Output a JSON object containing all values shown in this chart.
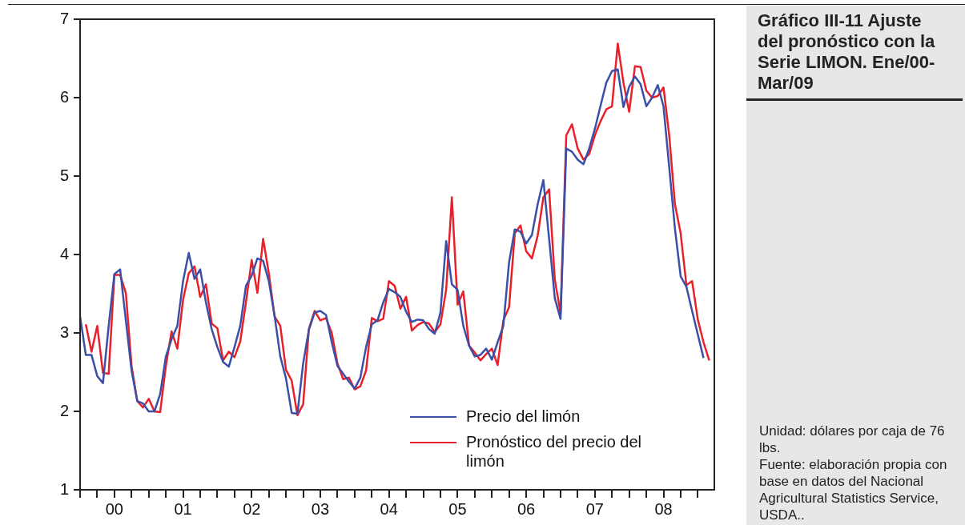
{
  "chart_data": {
    "type": "line",
    "title": "Gráfico III-11 Ajuste del pronóstico con la Serie LIMON. Ene/00-Mar/09",
    "annotations": [
      "Unidad: dólares por caja de 76 lbs.",
      "Fuente: elaboración propia con base en datos del Nacional Agricultural Statistics Service, USDA.."
    ],
    "x": [
      "2000-01",
      "2000-02",
      "2000-03",
      "2000-04",
      "2000-05",
      "2000-06",
      "2000-07",
      "2000-08",
      "2000-09",
      "2000-10",
      "2000-11",
      "2000-12",
      "2001-01",
      "2001-02",
      "2001-03",
      "2001-04",
      "2001-05",
      "2001-06",
      "2001-07",
      "2001-08",
      "2001-09",
      "2001-10",
      "2001-11",
      "2001-12",
      "2002-01",
      "2002-02",
      "2002-03",
      "2002-04",
      "2002-05",
      "2002-06",
      "2002-07",
      "2002-08",
      "2002-09",
      "2002-10",
      "2002-11",
      "2002-12",
      "2003-01",
      "2003-02",
      "2003-03",
      "2003-04",
      "2003-05",
      "2003-06",
      "2003-07",
      "2003-08",
      "2003-09",
      "2003-10",
      "2003-11",
      "2003-12",
      "2004-01",
      "2004-02",
      "2004-03",
      "2004-04",
      "2004-05",
      "2004-06",
      "2004-07",
      "2004-08",
      "2004-09",
      "2004-10",
      "2004-11",
      "2004-12",
      "2005-01",
      "2005-02",
      "2005-03",
      "2005-04",
      "2005-05",
      "2005-06",
      "2005-07",
      "2005-08",
      "2005-09",
      "2005-10",
      "2005-11",
      "2005-12",
      "2006-01",
      "2006-02",
      "2006-03",
      "2006-04",
      "2006-05",
      "2006-06",
      "2006-07",
      "2006-08",
      "2006-09",
      "2006-10",
      "2006-11",
      "2006-12",
      "2007-01",
      "2007-02",
      "2007-03",
      "2007-04",
      "2007-05",
      "2007-06",
      "2007-07",
      "2007-08",
      "2007-09",
      "2007-10",
      "2007-11",
      "2007-12",
      "2008-01",
      "2008-02",
      "2008-03",
      "2008-04",
      "2008-05",
      "2008-06",
      "2008-07",
      "2008-08",
      "2008-09",
      "2008-10",
      "2008-11",
      "2008-12",
      "2009-01",
      "2009-02",
      "2009-03"
    ],
    "series": [
      {
        "name": "Precio del limón",
        "color": "#3a50a8",
        "values": [
          3.21,
          2.72,
          2.72,
          2.45,
          2.36,
          3.09,
          3.75,
          3.81,
          3.16,
          2.52,
          2.13,
          2.1,
          2.0,
          2.0,
          2.22,
          2.7,
          2.92,
          3.09,
          3.66,
          4.02,
          3.69,
          3.81,
          3.39,
          3.05,
          2.82,
          2.63,
          2.57,
          2.82,
          3.09,
          3.6,
          3.73,
          3.95,
          3.92,
          3.66,
          3.22,
          2.7,
          2.42,
          1.98,
          1.97,
          2.61,
          3.04,
          3.26,
          3.28,
          3.23,
          2.88,
          2.58,
          2.48,
          2.38,
          2.29,
          2.43,
          2.82,
          3.11,
          3.16,
          3.39,
          3.56,
          3.52,
          3.46,
          3.27,
          3.14,
          3.17,
          3.16,
          3.05,
          2.99,
          3.26,
          4.17,
          3.62,
          3.55,
          3.09,
          2.84,
          2.7,
          2.72,
          2.8,
          2.66,
          2.88,
          3.09,
          3.9,
          4.32,
          4.29,
          4.14,
          4.25,
          4.64,
          4.95,
          4.2,
          3.44,
          3.18,
          5.35,
          5.31,
          5.21,
          5.15,
          5.35,
          5.6,
          5.9,
          6.19,
          6.34,
          6.36,
          5.88,
          6.14,
          6.27,
          6.17,
          5.89,
          6.0,
          6.16,
          5.89,
          5.11,
          4.33,
          3.72,
          3.59,
          3.28,
          2.98,
          2.68,
          null
        ]
      },
      {
        "name": "Pronóstico del precio del limón",
        "color": "#e8202a",
        "values": [
          null,
          3.11,
          2.76,
          3.09,
          2.49,
          2.48,
          3.74,
          3.74,
          3.51,
          2.58,
          2.13,
          2.05,
          2.16,
          2.0,
          1.99,
          2.58,
          3.02,
          2.8,
          3.42,
          3.76,
          3.85,
          3.46,
          3.62,
          3.12,
          3.06,
          2.65,
          2.76,
          2.69,
          2.89,
          3.39,
          3.93,
          3.51,
          4.2,
          3.76,
          3.21,
          3.09,
          2.53,
          2.39,
          1.95,
          2.09,
          3.05,
          3.28,
          3.16,
          3.19,
          3.0,
          2.61,
          2.41,
          2.43,
          2.28,
          2.32,
          2.52,
          3.19,
          3.15,
          3.18,
          3.66,
          3.6,
          3.31,
          3.46,
          3.03,
          3.1,
          3.14,
          3.12,
          3.01,
          3.11,
          3.55,
          4.73,
          3.36,
          3.53,
          2.84,
          2.75,
          2.65,
          2.73,
          2.8,
          2.59,
          3.16,
          3.33,
          4.27,
          4.37,
          4.04,
          3.95,
          4.24,
          4.73,
          4.83,
          3.68,
          3.25,
          5.52,
          5.66,
          5.35,
          5.21,
          5.28,
          5.52,
          5.7,
          5.85,
          5.89,
          6.69,
          6.19,
          5.82,
          6.4,
          6.39,
          6.09,
          6.0,
          6.02,
          6.13,
          5.52,
          4.64,
          4.27,
          3.61,
          3.66,
          3.17,
          2.88,
          2.65
        ]
      }
    ],
    "xlim": [
      "2000-01",
      "2009-03-28"
    ],
    "xticks": [
      {
        "value": "2000-01",
        "label": null
      },
      {
        "value": "2000-04",
        "label": null
      },
      {
        "value": "2000-07",
        "label": "00"
      },
      {
        "value": "2000-10",
        "label": null
      },
      {
        "value": "2001-01",
        "label": null
      },
      {
        "value": "2001-04",
        "label": null
      },
      {
        "value": "2001-07",
        "label": "01"
      },
      {
        "value": "2001-10",
        "label": null
      },
      {
        "value": "2002-01",
        "label": null
      },
      {
        "value": "2002-04",
        "label": null
      },
      {
        "value": "2002-07",
        "label": "02"
      },
      {
        "value": "2002-10",
        "label": null
      },
      {
        "value": "2003-01",
        "label": null
      },
      {
        "value": "2003-04",
        "label": null
      },
      {
        "value": "2003-07",
        "label": "03"
      },
      {
        "value": "2003-10",
        "label": null
      },
      {
        "value": "2004-01",
        "label": null
      },
      {
        "value": "2004-04",
        "label": null
      },
      {
        "value": "2004-07",
        "label": "04"
      },
      {
        "value": "2004-10",
        "label": null
      },
      {
        "value": "2005-01",
        "label": null
      },
      {
        "value": "2005-04",
        "label": null
      },
      {
        "value": "2005-07",
        "label": "05"
      },
      {
        "value": "2005-10",
        "label": null
      },
      {
        "value": "2006-01",
        "label": null
      },
      {
        "value": "2006-04",
        "label": null
      },
      {
        "value": "2006-07",
        "label": "06"
      },
      {
        "value": "2006-10",
        "label": null
      },
      {
        "value": "2007-01",
        "label": null
      },
      {
        "value": "2007-04",
        "label": null
      },
      {
        "value": "2007-07",
        "label": "07"
      },
      {
        "value": "2007-10",
        "label": null
      },
      {
        "value": "2008-01",
        "label": null
      },
      {
        "value": "2008-04",
        "label": null
      },
      {
        "value": "2008-07",
        "label": "08"
      },
      {
        "value": "2008-10",
        "label": null
      },
      {
        "value": "2009-01",
        "label": null
      }
    ],
    "ylim": [
      1,
      7
    ],
    "yticks": [
      1,
      2,
      3,
      4,
      5,
      6,
      7
    ],
    "grid": false,
    "legend": "bottom right",
    "marker": "none",
    "line_style": "solid"
  }
}
